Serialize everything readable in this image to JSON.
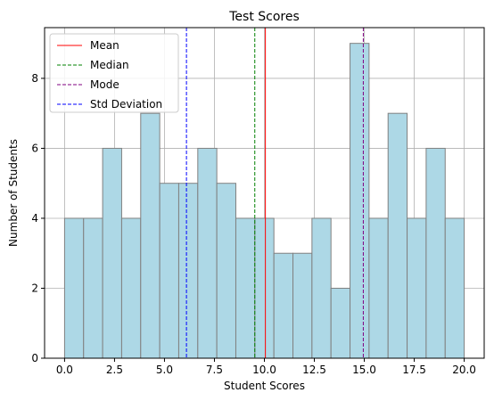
{
  "chart_data": {
    "type": "bar",
    "title": "Test Scores",
    "xlabel": "Student Scores",
    "ylabel": "Number of Students",
    "xlim": [
      -1,
      21
    ],
    "ylim": [
      0,
      9.45
    ],
    "bin_edges": [
      0,
      0.952,
      1.905,
      2.857,
      3.81,
      4.762,
      5.714,
      6.667,
      7.619,
      8.571,
      9.524,
      10.476,
      11.429,
      12.381,
      13.333,
      14.286,
      15.238,
      16.19,
      17.143,
      18.095,
      19.048,
      20
    ],
    "counts": [
      4,
      4,
      6,
      4,
      7,
      5,
      5,
      6,
      5,
      4,
      4,
      3,
      3,
      4,
      2,
      9,
      4,
      7,
      4,
      6,
      4
    ],
    "bar_fill": "#add8e6",
    "bar_edge": "#808080",
    "x_ticks": [
      0,
      2.5,
      5,
      7.5,
      10,
      12.5,
      15,
      17.5,
      20
    ],
    "x_tick_labels": [
      "0.0",
      "2.5",
      "5.0",
      "7.5",
      "10.0",
      "12.5",
      "15.0",
      "17.5",
      "20.0"
    ],
    "y_ticks": [
      0,
      2,
      4,
      6,
      8
    ],
    "y_tick_labels": [
      "0",
      "2",
      "4",
      "6",
      "8"
    ],
    "grid": true,
    "legend_position": "top-left",
    "reference_lines": [
      {
        "name": "Mean",
        "x": 10.05,
        "color": "#ff0000",
        "style": "solid"
      },
      {
        "name": "Median",
        "x": 9.52,
        "color": "#008000",
        "style": "dashed"
      },
      {
        "name": "Mode",
        "x": 14.95,
        "color": "#800080",
        "style": "dashed"
      },
      {
        "name": "Std Deviation",
        "x": 6.1,
        "color": "#0000ff",
        "style": "dashed"
      }
    ]
  }
}
